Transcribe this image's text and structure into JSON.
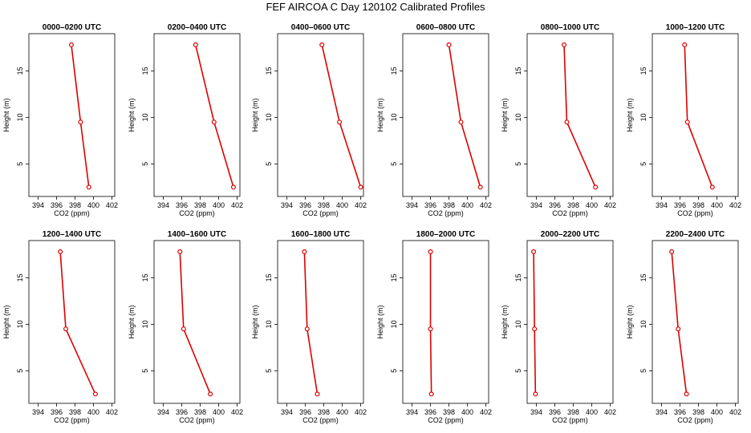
{
  "figure": {
    "title": "FEF AIRCOA C  Day 120102  Calibrated Profiles",
    "xlabel": "CO2 (ppm)",
    "ylabel": "Height (m)",
    "xlim": [
      393,
      402.3
    ],
    "ylim": [
      1.5,
      19
    ],
    "xticks": [
      "394",
      "396",
      "398",
      "400",
      "402"
    ],
    "yticks": [
      "5",
      "10",
      "15"
    ],
    "line_color": "#dd0000",
    "marker_color": "#dd0000"
  },
  "chart_data": [
    {
      "type": "line",
      "title": "0000–0200 UTC",
      "heights": [
        2.5,
        9.5,
        17.8
      ],
      "co2": [
        399.5,
        398.6,
        397.6
      ]
    },
    {
      "type": "line",
      "title": "0200–0400 UTC",
      "heights": [
        2.5,
        9.5,
        17.8
      ],
      "co2": [
        401.6,
        399.5,
        397.5
      ]
    },
    {
      "type": "line",
      "title": "0400–0600 UTC",
      "heights": [
        2.5,
        9.5,
        17.8
      ],
      "co2": [
        402.0,
        399.7,
        397.8
      ]
    },
    {
      "type": "line",
      "title": "0600–0800 UTC",
      "heights": [
        2.5,
        9.5,
        17.8
      ],
      "co2": [
        401.4,
        399.3,
        398.0
      ]
    },
    {
      "type": "line",
      "title": "0800–1000 UTC",
      "heights": [
        2.5,
        9.5,
        17.8
      ],
      "co2": [
        400.4,
        397.3,
        397.0
      ]
    },
    {
      "type": "line",
      "title": "1000–1200 UTC",
      "heights": [
        2.5,
        9.5,
        17.8
      ],
      "co2": [
        399.5,
        396.8,
        396.5
      ]
    },
    {
      "type": "line",
      "title": "1200–1400 UTC",
      "heights": [
        2.5,
        9.5,
        17.8
      ],
      "co2": [
        400.2,
        397.0,
        396.4
      ]
    },
    {
      "type": "line",
      "title": "1400–1600 UTC",
      "heights": [
        2.5,
        9.5,
        17.8
      ],
      "co2": [
        399.1,
        396.2,
        395.8
      ]
    },
    {
      "type": "line",
      "title": "1600–1800 UTC",
      "heights": [
        2.5,
        9.5,
        17.8
      ],
      "co2": [
        397.3,
        396.2,
        395.9
      ]
    },
    {
      "type": "line",
      "title": "1800–2000 UTC",
      "heights": [
        2.5,
        9.5,
        17.8
      ],
      "co2": [
        396.1,
        396.0,
        396.0
      ]
    },
    {
      "type": "line",
      "title": "2000–2200 UTC",
      "heights": [
        2.5,
        9.5,
        17.8
      ],
      "co2": [
        393.9,
        393.8,
        393.7
      ]
    },
    {
      "type": "line",
      "title": "2200–2400 UTC",
      "heights": [
        2.5,
        9.5,
        17.8
      ],
      "co2": [
        396.7,
        395.8,
        395.1
      ]
    }
  ]
}
